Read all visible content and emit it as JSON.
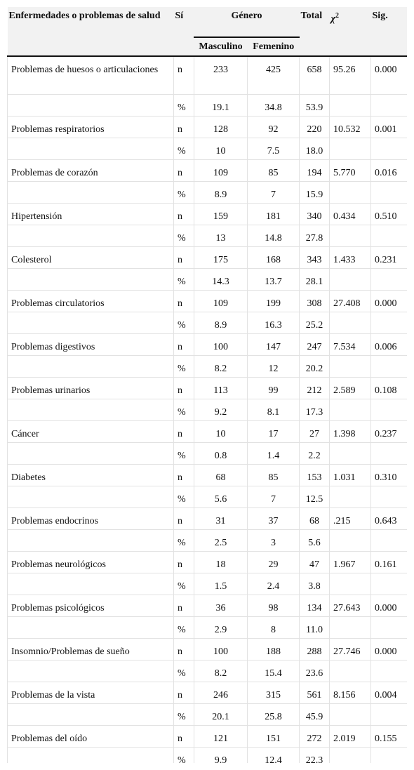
{
  "table": {
    "headers": {
      "disease": "Enfermedades o problemas de salud",
      "si": "Sí",
      "genero": "Género",
      "total": "Total",
      "chi": "χ",
      "chi_sup": "2",
      "sig": "Sig.",
      "masculino": "Masculino",
      "femenino": "Femenino"
    },
    "rows": [
      {
        "label": "Problemas de huesos o articulaciones",
        "n_row": [
          "n",
          "233",
          "425",
          "658",
          "95.26",
          "0.000"
        ],
        "pct_row": [
          "%",
          "19.1",
          "34.8",
          "53.9"
        ]
      },
      {
        "label": "Problemas respiratorios",
        "n_row": [
          "n",
          "128",
          "92",
          "220",
          "10.532",
          "0.001"
        ],
        "pct_row": [
          "%",
          "10",
          "7.5",
          "18.0"
        ]
      },
      {
        "label": "Problemas de corazón",
        "n_row": [
          "n",
          "109",
          "85",
          "194",
          "5.770",
          "0.016"
        ],
        "pct_row": [
          "%",
          "8.9",
          "7",
          "15.9"
        ]
      },
      {
        "label": "Hipertensión",
        "n_row": [
          "n",
          "159",
          "181",
          "340",
          "0.434",
          "0.510"
        ],
        "pct_row": [
          "%",
          "13",
          "14.8",
          "27.8"
        ]
      },
      {
        "label": "Colesterol",
        "n_row": [
          "n",
          "175",
          "168",
          "343",
          "1.433",
          "0.231"
        ],
        "pct_row": [
          "%",
          "14.3",
          "13.7",
          "28.1"
        ]
      },
      {
        "label": "Problemas circulatorios",
        "n_row": [
          "n",
          "109",
          "199",
          "308",
          "27.408",
          "0.000"
        ],
        "pct_row": [
          "%",
          "8.9",
          "16.3",
          "25.2"
        ]
      },
      {
        "label": "Problemas digestivos",
        "n_row": [
          "n",
          "100",
          "147",
          "247",
          "7.534",
          "0.006"
        ],
        "pct_row": [
          "%",
          "8.2",
          "12",
          "20.2"
        ]
      },
      {
        "label": "Problemas urinarios",
        "n_row": [
          "n",
          "113",
          "99",
          "212",
          "2.589",
          "0.108"
        ],
        "pct_row": [
          "%",
          "9.2",
          "8.1",
          "17.3"
        ]
      },
      {
        "label": "Cáncer",
        "n_row": [
          "n",
          "10",
          "17",
          "27",
          "1.398",
          "0.237"
        ],
        "pct_row": [
          "%",
          "0.8",
          "1.4",
          "2.2"
        ]
      },
      {
        "label": "Diabetes",
        "n_row": [
          "n",
          "68",
          "85",
          "153",
          "1.031",
          "0.310"
        ],
        "pct_row": [
          "%",
          "5.6",
          "7",
          "12.5"
        ]
      },
      {
        "label": "Problemas endocrinos",
        "n_row": [
          "n",
          "31",
          "37",
          "68",
          ".215",
          "0.643"
        ],
        "pct_row": [
          "%",
          "2.5",
          "3",
          "5.6"
        ]
      },
      {
        "label": "Problemas neurológicos",
        "n_row": [
          "n",
          "18",
          "29",
          "47",
          "1.967",
          "0.161"
        ],
        "pct_row": [
          "%",
          "1.5",
          "2.4",
          "3.8"
        ]
      },
      {
        "label": "Problemas psicológicos",
        "n_row": [
          "n",
          "36",
          "98",
          "134",
          "27.643",
          "0.000"
        ],
        "pct_row": [
          "%",
          "2.9",
          "8",
          "11.0"
        ]
      },
      {
        "label": "Insomnio/Problemas de sueño",
        "n_row": [
          "n",
          "100",
          "188",
          "288",
          "27.746",
          "0.000"
        ],
        "pct_row": [
          "%",
          "8.2",
          "15.4",
          "23.6"
        ]
      },
      {
        "label": "Problemas de la vista",
        "n_row": [
          "n",
          "246",
          "315",
          "561",
          "8.156",
          "0.004"
        ],
        "pct_row": [
          "%",
          "20.1",
          "25.8",
          "45.9"
        ]
      },
      {
        "label": "Problemas del oído",
        "n_row": [
          "n",
          "121",
          "151",
          "272",
          "2.019",
          "0.155"
        ],
        "pct_row": [
          "%",
          "9.9",
          "12.4",
          "22.3"
        ]
      }
    ]
  }
}
